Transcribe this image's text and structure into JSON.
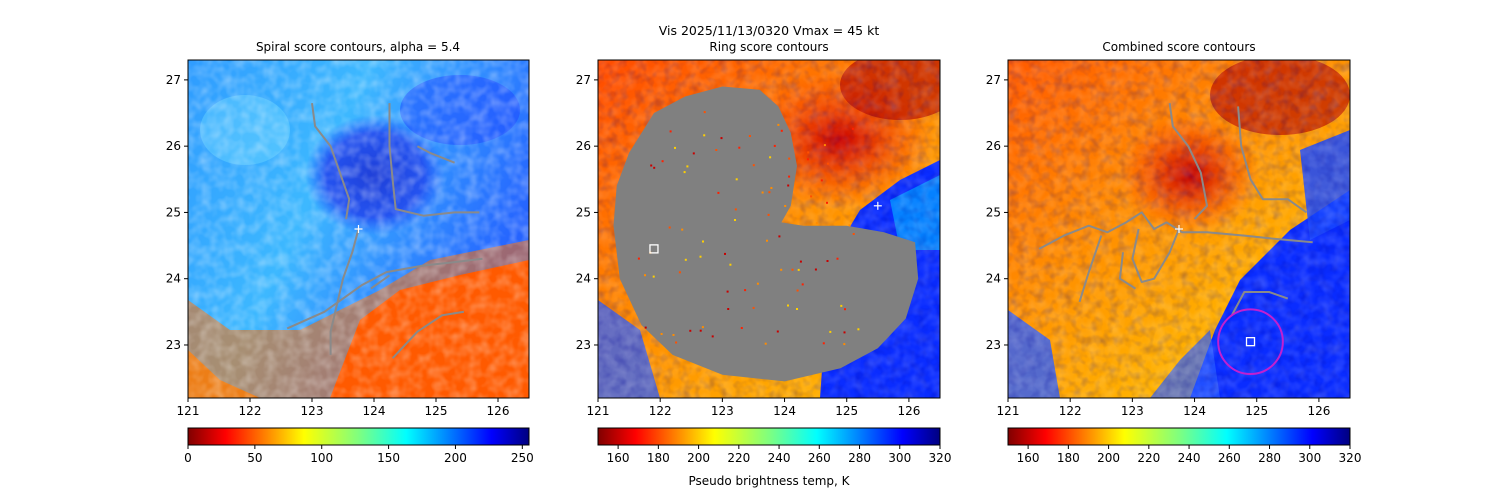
{
  "suptitle": "Vis  2025/11/13/0320    Vmax = 45 kt",
  "chart_data": [
    {
      "type": "heatmap",
      "title": "Spiral score contours, alpha =  5.4",
      "colormap": "jet_r",
      "xlim": [
        121.0,
        126.5
      ],
      "ylim": [
        22.2,
        27.3
      ],
      "xticks": [
        121,
        122,
        123,
        124,
        125,
        126
      ],
      "yticks": [
        23,
        24,
        25,
        26,
        27
      ],
      "colorbar": {
        "min": 0,
        "max": 255,
        "ticks": [
          0,
          50,
          100,
          150,
          200,
          250
        ],
        "label": ""
      },
      "center_marker": {
        "lon": 123.75,
        "lat": 24.75,
        "symbol": "+"
      },
      "square_marker": null,
      "circle": null,
      "mask": null,
      "contours": [
        [
          [
            123.0,
            26.65
          ],
          [
            123.05,
            26.3
          ],
          [
            123.3,
            26.0
          ],
          [
            123.45,
            25.6
          ],
          [
            123.6,
            25.2
          ],
          [
            123.55,
            24.9
          ]
        ],
        [
          [
            124.25,
            26.65
          ],
          [
            124.25,
            26.0
          ],
          [
            124.3,
            25.5
          ],
          [
            124.35,
            25.05
          ],
          [
            124.8,
            24.95
          ],
          [
            125.3,
            25.0
          ],
          [
            125.7,
            25.0
          ]
        ],
        [
          [
            124.7,
            26.0
          ],
          [
            124.9,
            25.9
          ],
          [
            125.3,
            25.75
          ]
        ],
        [
          [
            123.75,
            24.75
          ],
          [
            123.65,
            24.4
          ],
          [
            123.5,
            24.0
          ],
          [
            123.4,
            23.6
          ],
          [
            123.3,
            23.2
          ],
          [
            123.3,
            22.85
          ]
        ],
        [
          [
            122.6,
            23.25
          ],
          [
            123.2,
            23.5
          ],
          [
            123.8,
            23.9
          ],
          [
            124.2,
            24.1
          ],
          [
            124.8,
            24.2
          ],
          [
            125.3,
            24.25
          ],
          [
            125.75,
            24.3
          ]
        ],
        [
          [
            124.3,
            22.8
          ],
          [
            124.7,
            23.2
          ],
          [
            125.1,
            23.45
          ],
          [
            125.45,
            23.5
          ]
        ],
        [
          [
            123.95,
            23.85
          ],
          [
            124.25,
            24.05
          ]
        ]
      ]
    },
    {
      "type": "heatmap",
      "title": "Ring score contours",
      "colormap": "jet_r",
      "xlim": [
        121.0,
        126.5
      ],
      "ylim": [
        22.2,
        27.3
      ],
      "xticks": [
        121,
        122,
        123,
        124,
        125,
        126
      ],
      "yticks": [
        23,
        24,
        25,
        26,
        27
      ],
      "colorbar": {
        "min": 150,
        "max": 320,
        "ticks": [
          160,
          180,
          200,
          220,
          240,
          260,
          280,
          300,
          320
        ],
        "label": "Pseudo brightness temp, K"
      },
      "center_marker": {
        "lon": 125.5,
        "lat": 25.1,
        "symbol": "+"
      },
      "square_marker": {
        "lon": 121.9,
        "lat": 24.45
      },
      "circle": null,
      "mask": {
        "color": "#808080",
        "outline": [
          [
            121.5,
            25.9
          ],
          [
            121.9,
            26.5
          ],
          [
            122.4,
            26.75
          ],
          [
            123.0,
            26.9
          ],
          [
            123.6,
            26.85
          ],
          [
            123.9,
            26.6
          ],
          [
            124.1,
            26.2
          ],
          [
            124.2,
            25.7
          ],
          [
            124.1,
            25.1
          ],
          [
            123.95,
            24.85
          ],
          [
            124.3,
            24.8
          ],
          [
            125.0,
            24.8
          ],
          [
            125.6,
            24.7
          ],
          [
            126.1,
            24.55
          ],
          [
            126.15,
            24.0
          ],
          [
            125.95,
            23.4
          ],
          [
            125.5,
            22.95
          ],
          [
            124.9,
            22.65
          ],
          [
            124.0,
            22.45
          ],
          [
            123.0,
            22.55
          ],
          [
            122.2,
            22.85
          ],
          [
            121.7,
            23.3
          ],
          [
            121.35,
            24.0
          ],
          [
            121.25,
            24.8
          ],
          [
            121.3,
            25.4
          ]
        ]
      },
      "contours": []
    },
    {
      "type": "heatmap",
      "title": "Combined score contours",
      "colormap": "jet_r",
      "xlim": [
        121.0,
        126.5
      ],
      "ylim": [
        22.2,
        27.3
      ],
      "xticks": [
        121,
        122,
        123,
        124,
        125,
        126
      ],
      "yticks": [
        23,
        24,
        25,
        26,
        27
      ],
      "colorbar": {
        "min": 150,
        "max": 320,
        "ticks": [
          160,
          180,
          200,
          220,
          240,
          260,
          280,
          300,
          320
        ],
        "label": ""
      },
      "center_marker": {
        "lon": 123.75,
        "lat": 24.75,
        "symbol": "+"
      },
      "square_marker": {
        "lon": 124.9,
        "lat": 23.05
      },
      "circle": {
        "lon": 124.9,
        "lat": 23.05,
        "r_deg": 0.52,
        "color": "#c21fd0"
      },
      "mask": null,
      "contours": [
        [
          [
            123.6,
            26.65
          ],
          [
            123.65,
            26.3
          ],
          [
            123.9,
            26.0
          ],
          [
            124.1,
            25.6
          ],
          [
            124.2,
            25.1
          ],
          [
            124.0,
            24.9
          ]
        ],
        [
          [
            124.7,
            26.6
          ],
          [
            124.75,
            26.0
          ],
          [
            124.9,
            25.5
          ],
          [
            125.1,
            25.2
          ],
          [
            125.5,
            25.2
          ],
          [
            125.8,
            25.0
          ]
        ],
        [
          [
            121.5,
            24.45
          ],
          [
            121.9,
            24.65
          ],
          [
            122.3,
            24.8
          ],
          [
            122.6,
            24.7
          ],
          [
            122.9,
            24.85
          ],
          [
            123.15,
            25.0
          ],
          [
            123.35,
            24.75
          ],
          [
            123.55,
            24.85
          ],
          [
            123.8,
            24.7
          ],
          [
            124.2,
            24.7
          ],
          [
            124.8,
            24.65
          ],
          [
            125.3,
            24.6
          ],
          [
            125.9,
            24.55
          ]
        ],
        [
          [
            122.5,
            24.65
          ],
          [
            122.3,
            24.1
          ],
          [
            122.15,
            23.65
          ]
        ],
        [
          [
            123.1,
            24.75
          ],
          [
            123.0,
            24.3
          ],
          [
            123.15,
            23.95
          ],
          [
            123.35,
            24.0
          ],
          [
            123.6,
            24.4
          ],
          [
            123.75,
            24.75
          ]
        ],
        [
          [
            122.85,
            24.4
          ],
          [
            122.8,
            24.0
          ],
          [
            123.05,
            23.85
          ]
        ],
        [
          [
            124.6,
            23.45
          ],
          [
            124.8,
            23.8
          ],
          [
            125.2,
            23.8
          ],
          [
            125.5,
            23.7
          ]
        ]
      ]
    }
  ]
}
